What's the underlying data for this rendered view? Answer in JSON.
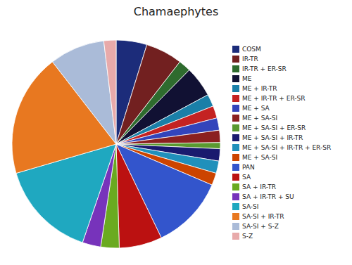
{
  "chart_data": {
    "type": "pie",
    "title": "Chamaephytes",
    "categories": [
      "COSM",
      "IR-TR",
      "IR-TR + ER-SR",
      "ME",
      "ME + IR-TR",
      "ME + IR-TR + ER-SR",
      "ME + SA",
      "ME + SA-SI",
      "ME + SA-SI + ER-SR",
      "ME + SA-SI + IR-TR",
      "ME + SA-SI + IR-TR + ER-SR",
      "ME + SA-SI",
      "PAN",
      "SA",
      "SA + IR-TR",
      "SA + IR-TR + SU",
      "SA-SI",
      "SA-SI + IR-TR",
      "SA-SI + S-Z",
      "S-Z"
    ],
    "values": [
      5,
      6,
      2,
      5,
      2,
      2,
      2,
      2,
      1,
      2,
      2,
      2,
      12,
      7,
      3,
      3,
      16,
      20,
      9,
      2
    ],
    "colors": [
      "#1C2C7A",
      "#722020",
      "#2E6B2E",
      "#111133",
      "#1A7FA8",
      "#C42222",
      "#3344BB",
      "#8B2020",
      "#5A9A30",
      "#1A1A6E",
      "#2090BB",
      "#CC4400",
      "#3355CC",
      "#BB1111",
      "#6AAA20",
      "#7733BB",
      "#1FA8C0",
      "#E87820",
      "#AABBD8",
      "#E8AAAA"
    ],
    "legend": "right"
  }
}
